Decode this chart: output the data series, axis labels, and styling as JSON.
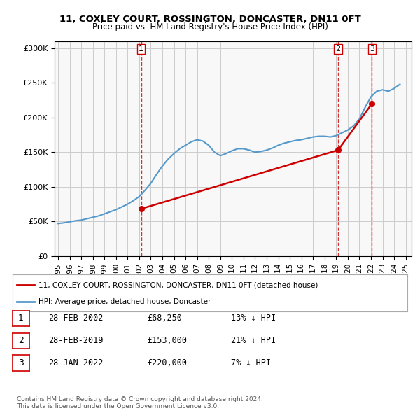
{
  "title": "11, COXLEY COURT, ROSSINGTON, DONCASTER, DN11 0FT",
  "subtitle": "Price paid vs. HM Land Registry's House Price Index (HPI)",
  "hpi_years": [
    1995,
    1995.5,
    1996,
    1996.5,
    1997,
    1997.5,
    1998,
    1998.5,
    1999,
    1999.5,
    2000,
    2000.5,
    2001,
    2001.5,
    2002,
    2002.5,
    2003,
    2003.5,
    2004,
    2004.5,
    2005,
    2005.5,
    2006,
    2006.5,
    2007,
    2007.5,
    2008,
    2008.5,
    2009,
    2009.5,
    2010,
    2010.5,
    2011,
    2011.5,
    2012,
    2012.5,
    2013,
    2013.5,
    2014,
    2014.5,
    2015,
    2015.5,
    2016,
    2016.5,
    2017,
    2017.5,
    2018,
    2018.5,
    2019,
    2019.5,
    2020,
    2020.5,
    2021,
    2021.5,
    2022,
    2022.5,
    2023,
    2023.5,
    2024,
    2024.5
  ],
  "hpi_values": [
    47000,
    48000,
    49500,
    51000,
    52000,
    54000,
    56000,
    58000,
    61000,
    64000,
    67000,
    71000,
    75000,
    80000,
    86000,
    95000,
    105000,
    118000,
    130000,
    140000,
    148000,
    155000,
    160000,
    165000,
    168000,
    166000,
    160000,
    150000,
    145000,
    148000,
    152000,
    155000,
    155000,
    153000,
    150000,
    151000,
    153000,
    156000,
    160000,
    163000,
    165000,
    167000,
    168000,
    170000,
    172000,
    173000,
    173000,
    172000,
    174000,
    178000,
    182000,
    188000,
    198000,
    215000,
    230000,
    238000,
    240000,
    238000,
    242000,
    248000
  ],
  "sale_dates": [
    2002.16,
    2019.16,
    2022.08
  ],
  "sale_prices": [
    68250,
    153000,
    220000
  ],
  "sale_labels": [
    "1",
    "2",
    "3"
  ],
  "vline_color": "#cc0000",
  "hpi_color": "#5599cc",
  "sale_color": "#cc0000",
  "sale_marker_color": "#cc0000",
  "ylim": [
    0,
    310000
  ],
  "xlim_start": 1995,
  "xlim_end": 2025.5,
  "yticks": [
    0,
    50000,
    100000,
    150000,
    200000,
    250000,
    300000
  ],
  "xtick_years": [
    1995,
    1996,
    1997,
    1998,
    1999,
    2000,
    2001,
    2002,
    2003,
    2004,
    2005,
    2006,
    2007,
    2008,
    2009,
    2010,
    2011,
    2012,
    2013,
    2014,
    2015,
    2016,
    2017,
    2018,
    2019,
    2020,
    2021,
    2022,
    2023,
    2024,
    2025
  ],
  "legend_property_label": "11, COXLEY COURT, ROSSINGTON, DONCASTER, DN11 0FT (detached house)",
  "legend_hpi_label": "HPI: Average price, detached house, Doncaster",
  "table_rows": [
    [
      "1",
      "28-FEB-2002",
      "£68,250",
      "13% ↓ HPI"
    ],
    [
      "2",
      "28-FEB-2019",
      "£153,000",
      "21% ↓ HPI"
    ],
    [
      "3",
      "28-JAN-2022",
      "£220,000",
      "7% ↓ HPI"
    ]
  ],
  "footer_text": "Contains HM Land Registry data © Crown copyright and database right 2024.\nThis data is licensed under the Open Government Licence v3.0.",
  "bg_color": "#ffffff",
  "grid_color": "#cccccc",
  "plot_bg_color": "#f8f8f8"
}
